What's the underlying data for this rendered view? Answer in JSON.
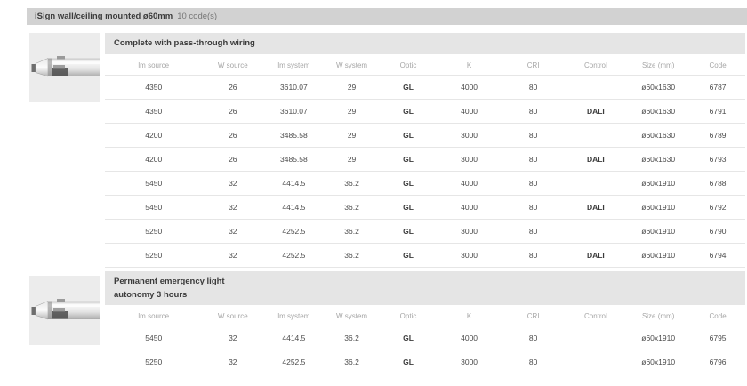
{
  "header": {
    "title": "iSign wall/ceiling mounted ø60mm",
    "code_count": "10 code(s)"
  },
  "columns": [
    "lm source",
    "W source",
    "lm system",
    "W system",
    "Optic",
    "K",
    "CRI",
    "Control",
    "Size (mm)",
    "Code"
  ],
  "sections": [
    {
      "title": "Complete with pass-through wiring",
      "rows": [
        [
          "4350",
          "26",
          "3610.07",
          "29",
          "GL",
          "4000",
          "80",
          "",
          "ø60x1630",
          "6787"
        ],
        [
          "4350",
          "26",
          "3610.07",
          "29",
          "GL",
          "4000",
          "80",
          "DALI",
          "ø60x1630",
          "6791"
        ],
        [
          "4200",
          "26",
          "3485.58",
          "29",
          "GL",
          "3000",
          "80",
          "",
          "ø60x1630",
          "6789"
        ],
        [
          "4200",
          "26",
          "3485.58",
          "29",
          "GL",
          "3000",
          "80",
          "DALI",
          "ø60x1630",
          "6793"
        ],
        [
          "5450",
          "32",
          "4414.5",
          "36.2",
          "GL",
          "4000",
          "80",
          "",
          "ø60x1910",
          "6788"
        ],
        [
          "5450",
          "32",
          "4414.5",
          "36.2",
          "GL",
          "4000",
          "80",
          "DALI",
          "ø60x1910",
          "6792"
        ],
        [
          "5250",
          "32",
          "4252.5",
          "36.2",
          "GL",
          "3000",
          "80",
          "",
          "ø60x1910",
          "6790"
        ],
        [
          "5250",
          "32",
          "4252.5",
          "36.2",
          "GL",
          "3000",
          "80",
          "DALI",
          "ø60x1910",
          "6794"
        ]
      ]
    },
    {
      "title": "Permanent emergency light\nautonomy 3 hours",
      "rows": [
        [
          "5450",
          "32",
          "4414.5",
          "36.2",
          "GL",
          "4000",
          "80",
          "",
          "ø60x1910",
          "6795"
        ],
        [
          "5250",
          "32",
          "4252.5",
          "36.2",
          "GL",
          "3000",
          "80",
          "",
          "ø60x1910",
          "6796"
        ]
      ]
    }
  ],
  "icons": {
    "thumbnail": "tube-light-fixture"
  },
  "colors": {
    "topbar_bg": "#d2d2d2",
    "section_header_bg": "#e5e5e5",
    "thumbnail_bg": "#ececec",
    "row_divider": "#e6e6e6",
    "header_text": "#a6a6a6",
    "cell_text": "#4b4b4b"
  }
}
